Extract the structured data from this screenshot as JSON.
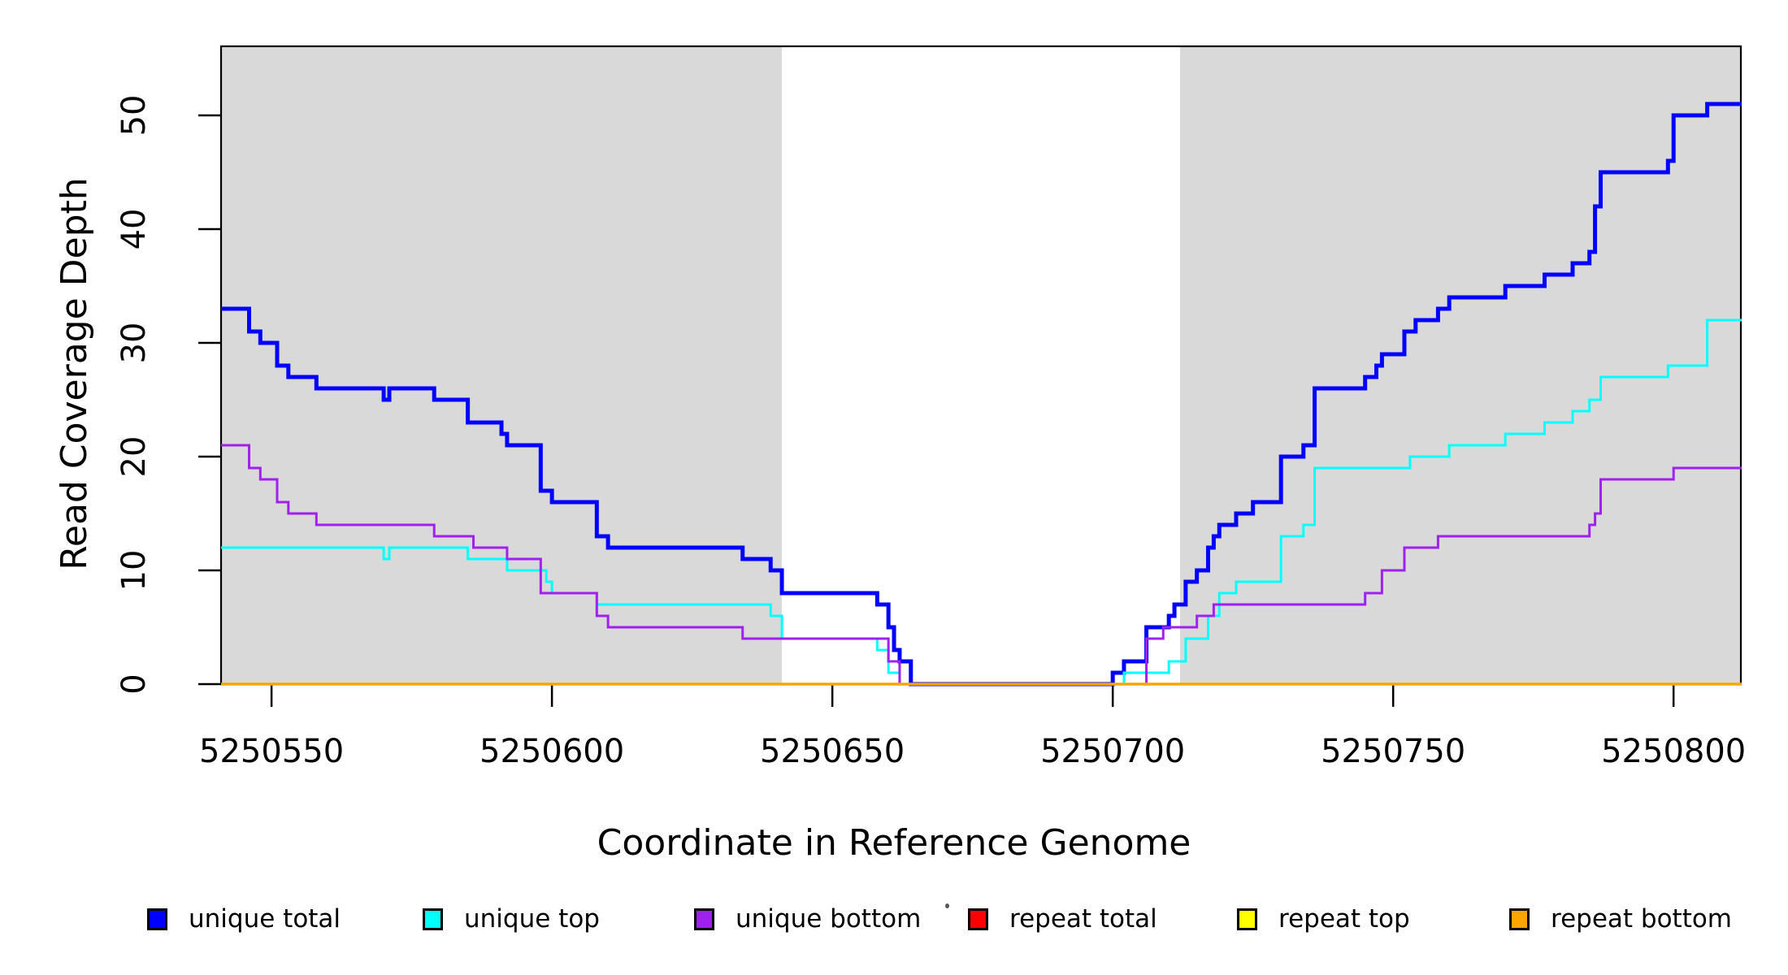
{
  "labels": {
    "x_title": "Coordinate in Reference Genome",
    "y_title": "Read Coverage Depth"
  },
  "decorations": {
    "stray_dot": ""
  },
  "legend": {
    "items": [
      {
        "label": "unique total",
        "color": "#0000FF"
      },
      {
        "label": "unique top",
        "color": "#00FFFF"
      },
      {
        "label": "unique bottom",
        "color": "#A020F0"
      },
      {
        "label": "repeat total",
        "color": "#FF0000"
      },
      {
        "label": "repeat top",
        "color": "#FFFF00"
      },
      {
        "label": "repeat bottom",
        "color": "#FFA500"
      }
    ]
  },
  "chart_data": {
    "type": "line",
    "subtype": "step-after",
    "title": "",
    "xlabel": "Coordinate in Reference Genome",
    "ylabel": "Read Coverage Depth",
    "xlim": [
      5250541,
      5250812
    ],
    "ylim": [
      0,
      56
    ],
    "x_ticks": [
      5250550,
      5250600,
      5250650,
      5250700,
      5250750,
      5250800
    ],
    "y_ticks": [
      0,
      10,
      20,
      30,
      40,
      50
    ],
    "grid": false,
    "legend_position": "bottom",
    "plot_bg": "#FFFFFF",
    "shaded_regions": [
      {
        "x0": 5250541,
        "x1": 5250641,
        "color": "#D9D9D9"
      },
      {
        "x0": 5250712,
        "x1": 5250812,
        "color": "#D9D9D9"
      }
    ],
    "series": [
      {
        "name": "unique total",
        "color": "#0000FF",
        "width": 5,
        "points": [
          [
            5250541,
            33
          ],
          [
            5250546,
            31
          ],
          [
            5250548,
            30
          ],
          [
            5250551,
            28
          ],
          [
            5250553,
            27
          ],
          [
            5250558,
            26
          ],
          [
            5250570,
            25
          ],
          [
            5250571,
            26
          ],
          [
            5250579,
            25
          ],
          [
            5250585,
            23
          ],
          [
            5250591,
            22
          ],
          [
            5250592,
            21
          ],
          [
            5250598,
            17
          ],
          [
            5250600,
            16
          ],
          [
            5250608,
            13
          ],
          [
            5250610,
            12
          ],
          [
            5250634,
            11
          ],
          [
            5250639,
            10
          ],
          [
            5250641,
            8
          ],
          [
            5250658,
            7
          ],
          [
            5250660,
            5
          ],
          [
            5250661,
            3
          ],
          [
            5250662,
            2
          ],
          [
            5250664,
            0
          ],
          [
            5250700,
            1
          ],
          [
            5250702,
            2
          ],
          [
            5250706,
            5
          ],
          [
            5250710,
            6
          ],
          [
            5250711,
            7
          ],
          [
            5250713,
            9
          ],
          [
            5250715,
            10
          ],
          [
            5250717,
            12
          ],
          [
            5250718,
            13
          ],
          [
            5250719,
            14
          ],
          [
            5250722,
            15
          ],
          [
            5250725,
            16
          ],
          [
            5250730,
            20
          ],
          [
            5250734,
            21
          ],
          [
            5250736,
            26
          ],
          [
            5250745,
            27
          ],
          [
            5250747,
            28
          ],
          [
            5250748,
            29
          ],
          [
            5250752,
            31
          ],
          [
            5250754,
            32
          ],
          [
            5250758,
            33
          ],
          [
            5250760,
            34
          ],
          [
            5250770,
            35
          ],
          [
            5250777,
            36
          ],
          [
            5250782,
            37
          ],
          [
            5250785,
            38
          ],
          [
            5250786,
            42
          ],
          [
            5250787,
            45
          ],
          [
            5250799,
            46
          ],
          [
            5250800,
            50
          ],
          [
            5250806,
            51
          ]
        ]
      },
      {
        "name": "unique top",
        "color": "#00FFFF",
        "width": 3,
        "points": [
          [
            5250541,
            12
          ],
          [
            5250570,
            11
          ],
          [
            5250571,
            12
          ],
          [
            5250585,
            11
          ],
          [
            5250592,
            10
          ],
          [
            5250599,
            9
          ],
          [
            5250600,
            8
          ],
          [
            5250608,
            7
          ],
          [
            5250639,
            6
          ],
          [
            5250641,
            4
          ],
          [
            5250658,
            3
          ],
          [
            5250660,
            1
          ],
          [
            5250662,
            0
          ],
          [
            5250702,
            1
          ],
          [
            5250710,
            2
          ],
          [
            5250713,
            4
          ],
          [
            5250717,
            6
          ],
          [
            5250719,
            8
          ],
          [
            5250722,
            9
          ],
          [
            5250730,
            13
          ],
          [
            5250734,
            14
          ],
          [
            5250736,
            19
          ],
          [
            5250753,
            20
          ],
          [
            5250760,
            21
          ],
          [
            5250770,
            22
          ],
          [
            5250777,
            23
          ],
          [
            5250782,
            24
          ],
          [
            5250785,
            25
          ],
          [
            5250787,
            27
          ],
          [
            5250799,
            28
          ],
          [
            5250806,
            32
          ]
        ]
      },
      {
        "name": "unique bottom",
        "color": "#A020F0",
        "width": 3,
        "points": [
          [
            5250541,
            21
          ],
          [
            5250546,
            19
          ],
          [
            5250548,
            18
          ],
          [
            5250551,
            16
          ],
          [
            5250553,
            15
          ],
          [
            5250558,
            14
          ],
          [
            5250579,
            13
          ],
          [
            5250586,
            12
          ],
          [
            5250592,
            11
          ],
          [
            5250598,
            8
          ],
          [
            5250608,
            6
          ],
          [
            5250610,
            5
          ],
          [
            5250634,
            4
          ],
          [
            5250660,
            2
          ],
          [
            5250662,
            0
          ],
          [
            5250706,
            4
          ],
          [
            5250709,
            5
          ],
          [
            5250715,
            6
          ],
          [
            5250718,
            7
          ],
          [
            5250745,
            8
          ],
          [
            5250748,
            10
          ],
          [
            5250752,
            12
          ],
          [
            5250758,
            13
          ],
          [
            5250785,
            14
          ],
          [
            5250786,
            15
          ],
          [
            5250787,
            18
          ],
          [
            5250800,
            19
          ]
        ]
      },
      {
        "name": "repeat total",
        "color": "#FF0000",
        "width": 3,
        "points": [
          [
            5250541,
            0
          ]
        ]
      },
      {
        "name": "repeat top",
        "color": "#FFFF00",
        "width": 3,
        "points": [
          [
            5250541,
            0
          ]
        ]
      },
      {
        "name": "repeat bottom",
        "color": "#FFA500",
        "width": 3.5,
        "points": [
          [
            5250541,
            0
          ]
        ]
      }
    ]
  }
}
